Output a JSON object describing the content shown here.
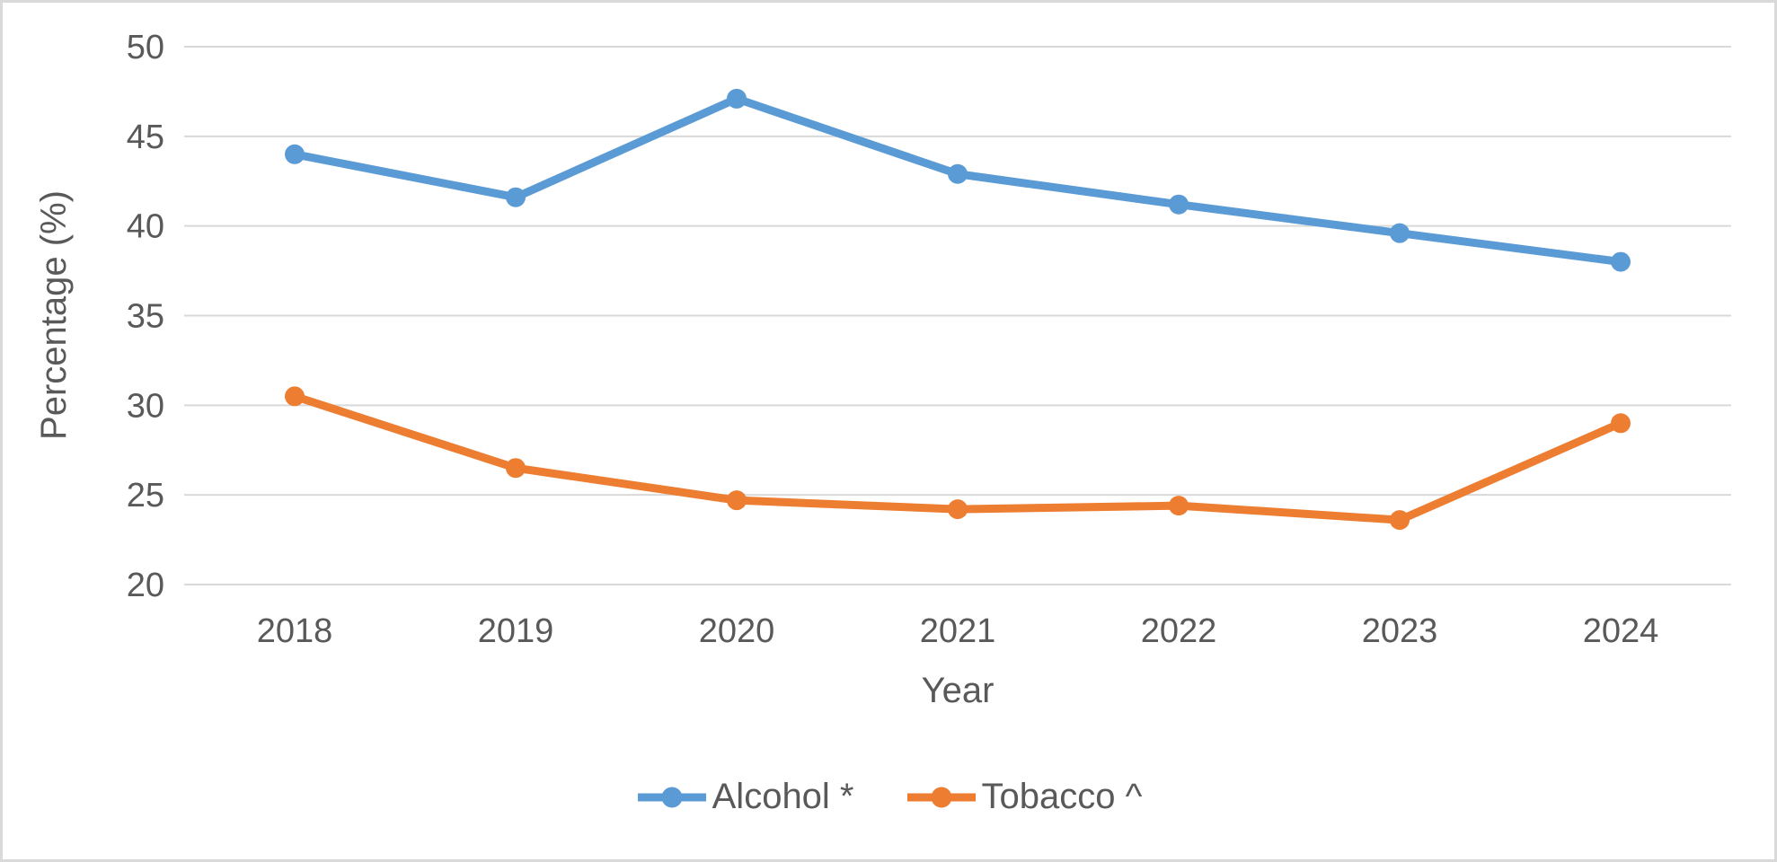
{
  "colors": {
    "alcohol": "#5B9BD5",
    "tobacco": "#ED7D31",
    "gridline": "#D9D9D9",
    "axis_text": "#595959",
    "canvas_border": "#D9D9D9"
  },
  "chart_data": {
    "type": "line",
    "title": "",
    "xlabel": "Year",
    "ylabel": "Percentage (%)",
    "categories": [
      "2018",
      "2019",
      "2020",
      "2021",
      "2022",
      "2023",
      "2024"
    ],
    "y_ticks": [
      20,
      25,
      30,
      35,
      40,
      45,
      50
    ],
    "ylim": [
      20,
      50
    ],
    "grid": true,
    "legend_position": "bottom",
    "marker": "circle",
    "series": [
      {
        "name": "Alcohol *",
        "color": "#5B9BD5",
        "values": [
          44.0,
          41.6,
          47.1,
          42.9,
          41.2,
          39.6,
          38.0
        ]
      },
      {
        "name": "Tobacco ^",
        "color": "#ED7D31",
        "values": [
          30.5,
          26.5,
          24.7,
          24.2,
          24.4,
          23.6,
          29.0
        ]
      }
    ]
  }
}
